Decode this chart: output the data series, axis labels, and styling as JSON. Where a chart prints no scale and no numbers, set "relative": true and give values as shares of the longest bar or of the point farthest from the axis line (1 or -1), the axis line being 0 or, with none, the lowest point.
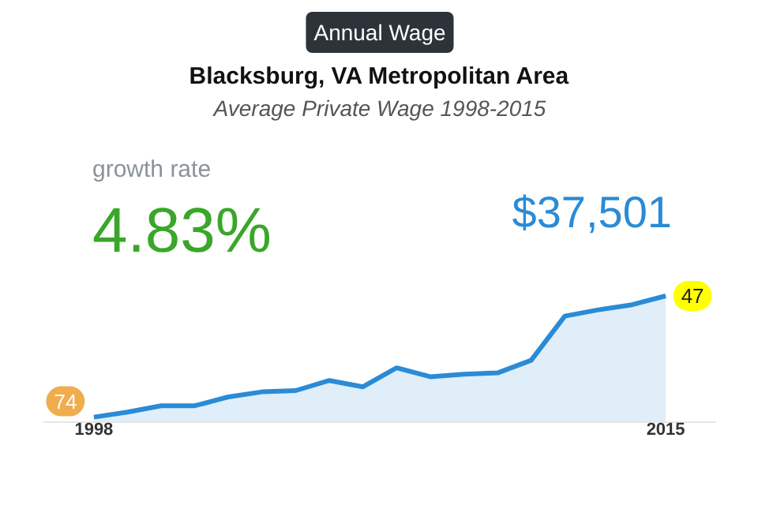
{
  "chart_data": {
    "type": "area",
    "title": "Blacksburg, VA Metropolitan Area",
    "subtitle": "Average Private Wage 1998-2015",
    "relative": true,
    "color": "#2a8bd6",
    "x": [
      1998,
      1999,
      2000,
      2001,
      2002,
      2003,
      2004,
      2005,
      2006,
      2007,
      2008,
      2009,
      2010,
      2011,
      2012,
      2013,
      2014,
      2015
    ],
    "values": [
      0.04,
      0.08,
      0.13,
      0.13,
      0.2,
      0.24,
      0.25,
      0.33,
      0.28,
      0.43,
      0.36,
      0.38,
      0.39,
      0.49,
      0.84,
      0.89,
      0.93,
      1.0
    ],
    "xlim": [
      1996.5,
      2016.5
    ],
    "xticks": [
      1998,
      2015
    ],
    "grid": false,
    "annotations": [
      "Annual Wage",
      "growth rate",
      "4.83%",
      "$37,501",
      {
        "text": "74",
        "x": 1998,
        "y": 0.04
      },
      {
        "text": "47",
        "x": 2015,
        "y": 1.0
      }
    ]
  }
}
